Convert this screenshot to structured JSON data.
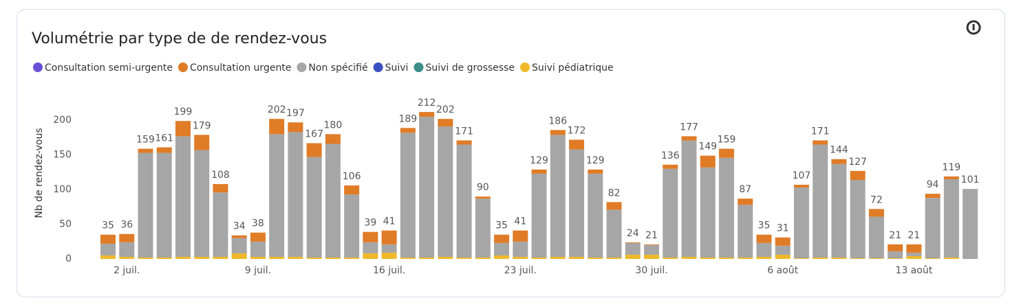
{
  "chart_data": {
    "type": "stacked_bar",
    "title": "Volumétrie par type de de rendez-vous",
    "y_label": "Nb de rendez-vous",
    "categories": [
      null,
      "2 juil.",
      null,
      null,
      null,
      null,
      null,
      null,
      "9 juil.",
      null,
      null,
      null,
      null,
      null,
      null,
      "16 juil.",
      null,
      null,
      null,
      null,
      null,
      null,
      "23 juil.",
      null,
      null,
      null,
      null,
      null,
      null,
      "30 juil.",
      null,
      null,
      null,
      null,
      null,
      null,
      "6 août",
      null,
      null,
      null,
      null,
      null,
      null,
      "13 août",
      null,
      null,
      null
    ],
    "ylim": [
      0,
      220
    ],
    "yticks": [
      0,
      50,
      100,
      150,
      200
    ],
    "total_labels": [
      35,
      36,
      159,
      161,
      199,
      179,
      108,
      34,
      38,
      202,
      197,
      167,
      180,
      106,
      39,
      41,
      189,
      212,
      202,
      171,
      90,
      35,
      41,
      129,
      186,
      172,
      129,
      82,
      24,
      21,
      136,
      177,
      149,
      159,
      87,
      35,
      31,
      107,
      171,
      144,
      127,
      72,
      21,
      21,
      94,
      119,
      101
    ],
    "series": [
      {
        "name": "Consultation semi-urgente",
        "color": "#6b4fd8",
        "values": [
          0,
          0,
          0,
          0,
          0,
          0,
          0,
          0,
          0,
          0,
          0,
          0,
          0,
          0,
          0,
          0,
          0,
          0,
          0,
          0,
          0,
          0,
          0,
          0,
          0,
          0,
          0,
          0,
          0,
          0,
          0,
          0,
          0,
          0,
          0,
          0,
          0,
          0,
          0,
          0,
          0,
          0,
          0,
          0,
          0,
          0,
          0
        ]
      },
      {
        "name": "Consultation urgente",
        "color": "#e07b26",
        "values": [
          13,
          12,
          6,
          8,
          22,
          22,
          12,
          4,
          13,
          22,
          14,
          20,
          14,
          13,
          15,
          20,
          7,
          7,
          11,
          6,
          3,
          12,
          16,
          6,
          7,
          14,
          6,
          11,
          1,
          1,
          6,
          6,
          17,
          13,
          9,
          12,
          12,
          4,
          6,
          7,
          13,
          11,
          10,
          12,
          6,
          4,
          0
        ]
      },
      {
        "name": "Non spécifié",
        "color": "#a6a6a6",
        "values": [
          17,
          21,
          151,
          151,
          174,
          154,
          93,
          22,
          22,
          177,
          180,
          145,
          164,
          91,
          16,
          12,
          180,
          203,
          188,
          163,
          85,
          18,
          22,
          121,
          176,
          155,
          121,
          69,
          17,
          14,
          128,
          168,
          130,
          144,
          76,
          20,
          13,
          102,
          163,
          135,
          113,
          60,
          10,
          5,
          87,
          113,
          101
        ]
      },
      {
        "name": "Suivi",
        "color": "#3a4fbf",
        "values": [
          0,
          0,
          0,
          0,
          0,
          0,
          0,
          0,
          0,
          0,
          0,
          0,
          0,
          0,
          0,
          0,
          0,
          0,
          0,
          0,
          0,
          0,
          0,
          0,
          0,
          0,
          0,
          0,
          0,
          0,
          0,
          0,
          0,
          0,
          0,
          0,
          0,
          0,
          0,
          0,
          0,
          0,
          0,
          0,
          0,
          0,
          0
        ]
      },
      {
        "name": "Suivi de grossesse",
        "color": "#3d8d8a",
        "values": [
          0,
          0,
          0,
          0,
          0,
          0,
          0,
          0,
          0,
          0,
          0,
          0,
          0,
          0,
          0,
          0,
          0,
          0,
          0,
          0,
          0,
          0,
          0,
          0,
          0,
          0,
          0,
          0,
          0,
          0,
          0,
          0,
          0,
          0,
          0,
          0,
          0,
          0,
          0,
          0,
          0,
          0,
          0,
          0,
          0,
          0,
          0
        ]
      },
      {
        "name": "Suivi pédiatrique",
        "color": "#f0b929",
        "values": [
          5,
          3,
          2,
          2,
          3,
          3,
          3,
          8,
          3,
          3,
          3,
          2,
          2,
          2,
          8,
          9,
          2,
          2,
          3,
          2,
          2,
          5,
          3,
          2,
          3,
          3,
          2,
          2,
          6,
          6,
          2,
          3,
          2,
          2,
          2,
          3,
          6,
          1,
          2,
          2,
          1,
          1,
          1,
          4,
          1,
          2,
          0
        ]
      }
    ]
  }
}
